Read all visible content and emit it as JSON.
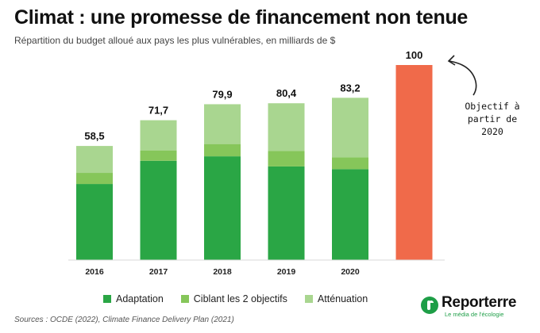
{
  "chart_data": {
    "type": "bar",
    "stacked": true,
    "title": "Climat : une promesse de financement non tenue",
    "subtitle": "Répartition du budget alloué aux pays les plus vulnérables, en milliards de $",
    "categories": [
      "2016",
      "2017",
      "2018",
      "2019",
      "2020",
      ""
    ],
    "series": [
      {
        "name": "Adaptation",
        "color": "#2aa645",
        "values": [
          39.0,
          50.9,
          53.2,
          48.0,
          46.6,
          null
        ]
      },
      {
        "name": "Ciblant les 2 objectifs",
        "color": "#86c65a",
        "values": [
          5.7,
          5.2,
          6.3,
          8.0,
          6.1,
          null
        ]
      },
      {
        "name": "Atténuation",
        "color": "#a9d690",
        "values": [
          13.8,
          15.6,
          20.4,
          24.4,
          30.5,
          null
        ]
      },
      {
        "name": "Objectif",
        "color": "#f06a4a",
        "values": [
          null,
          null,
          null,
          null,
          null,
          100
        ]
      }
    ],
    "totals": [
      "58,5",
      "71,7",
      "79,9",
      "80,4",
      "83,2",
      "100"
    ],
    "ylim": [
      0,
      100
    ],
    "annotation": [
      "Objectif à",
      "partir de",
      "2020"
    ],
    "legend": [
      "Adaptation",
      "Ciblant les 2 objectifs",
      "Atténuation"
    ],
    "legend_position": "bottom"
  },
  "footer": {
    "source": "Sources : OCDE (2022), Climate Finance Delivery Plan (2021)",
    "brand_name": "Reporterre",
    "brand_tagline": "Le média de l'écologie"
  }
}
